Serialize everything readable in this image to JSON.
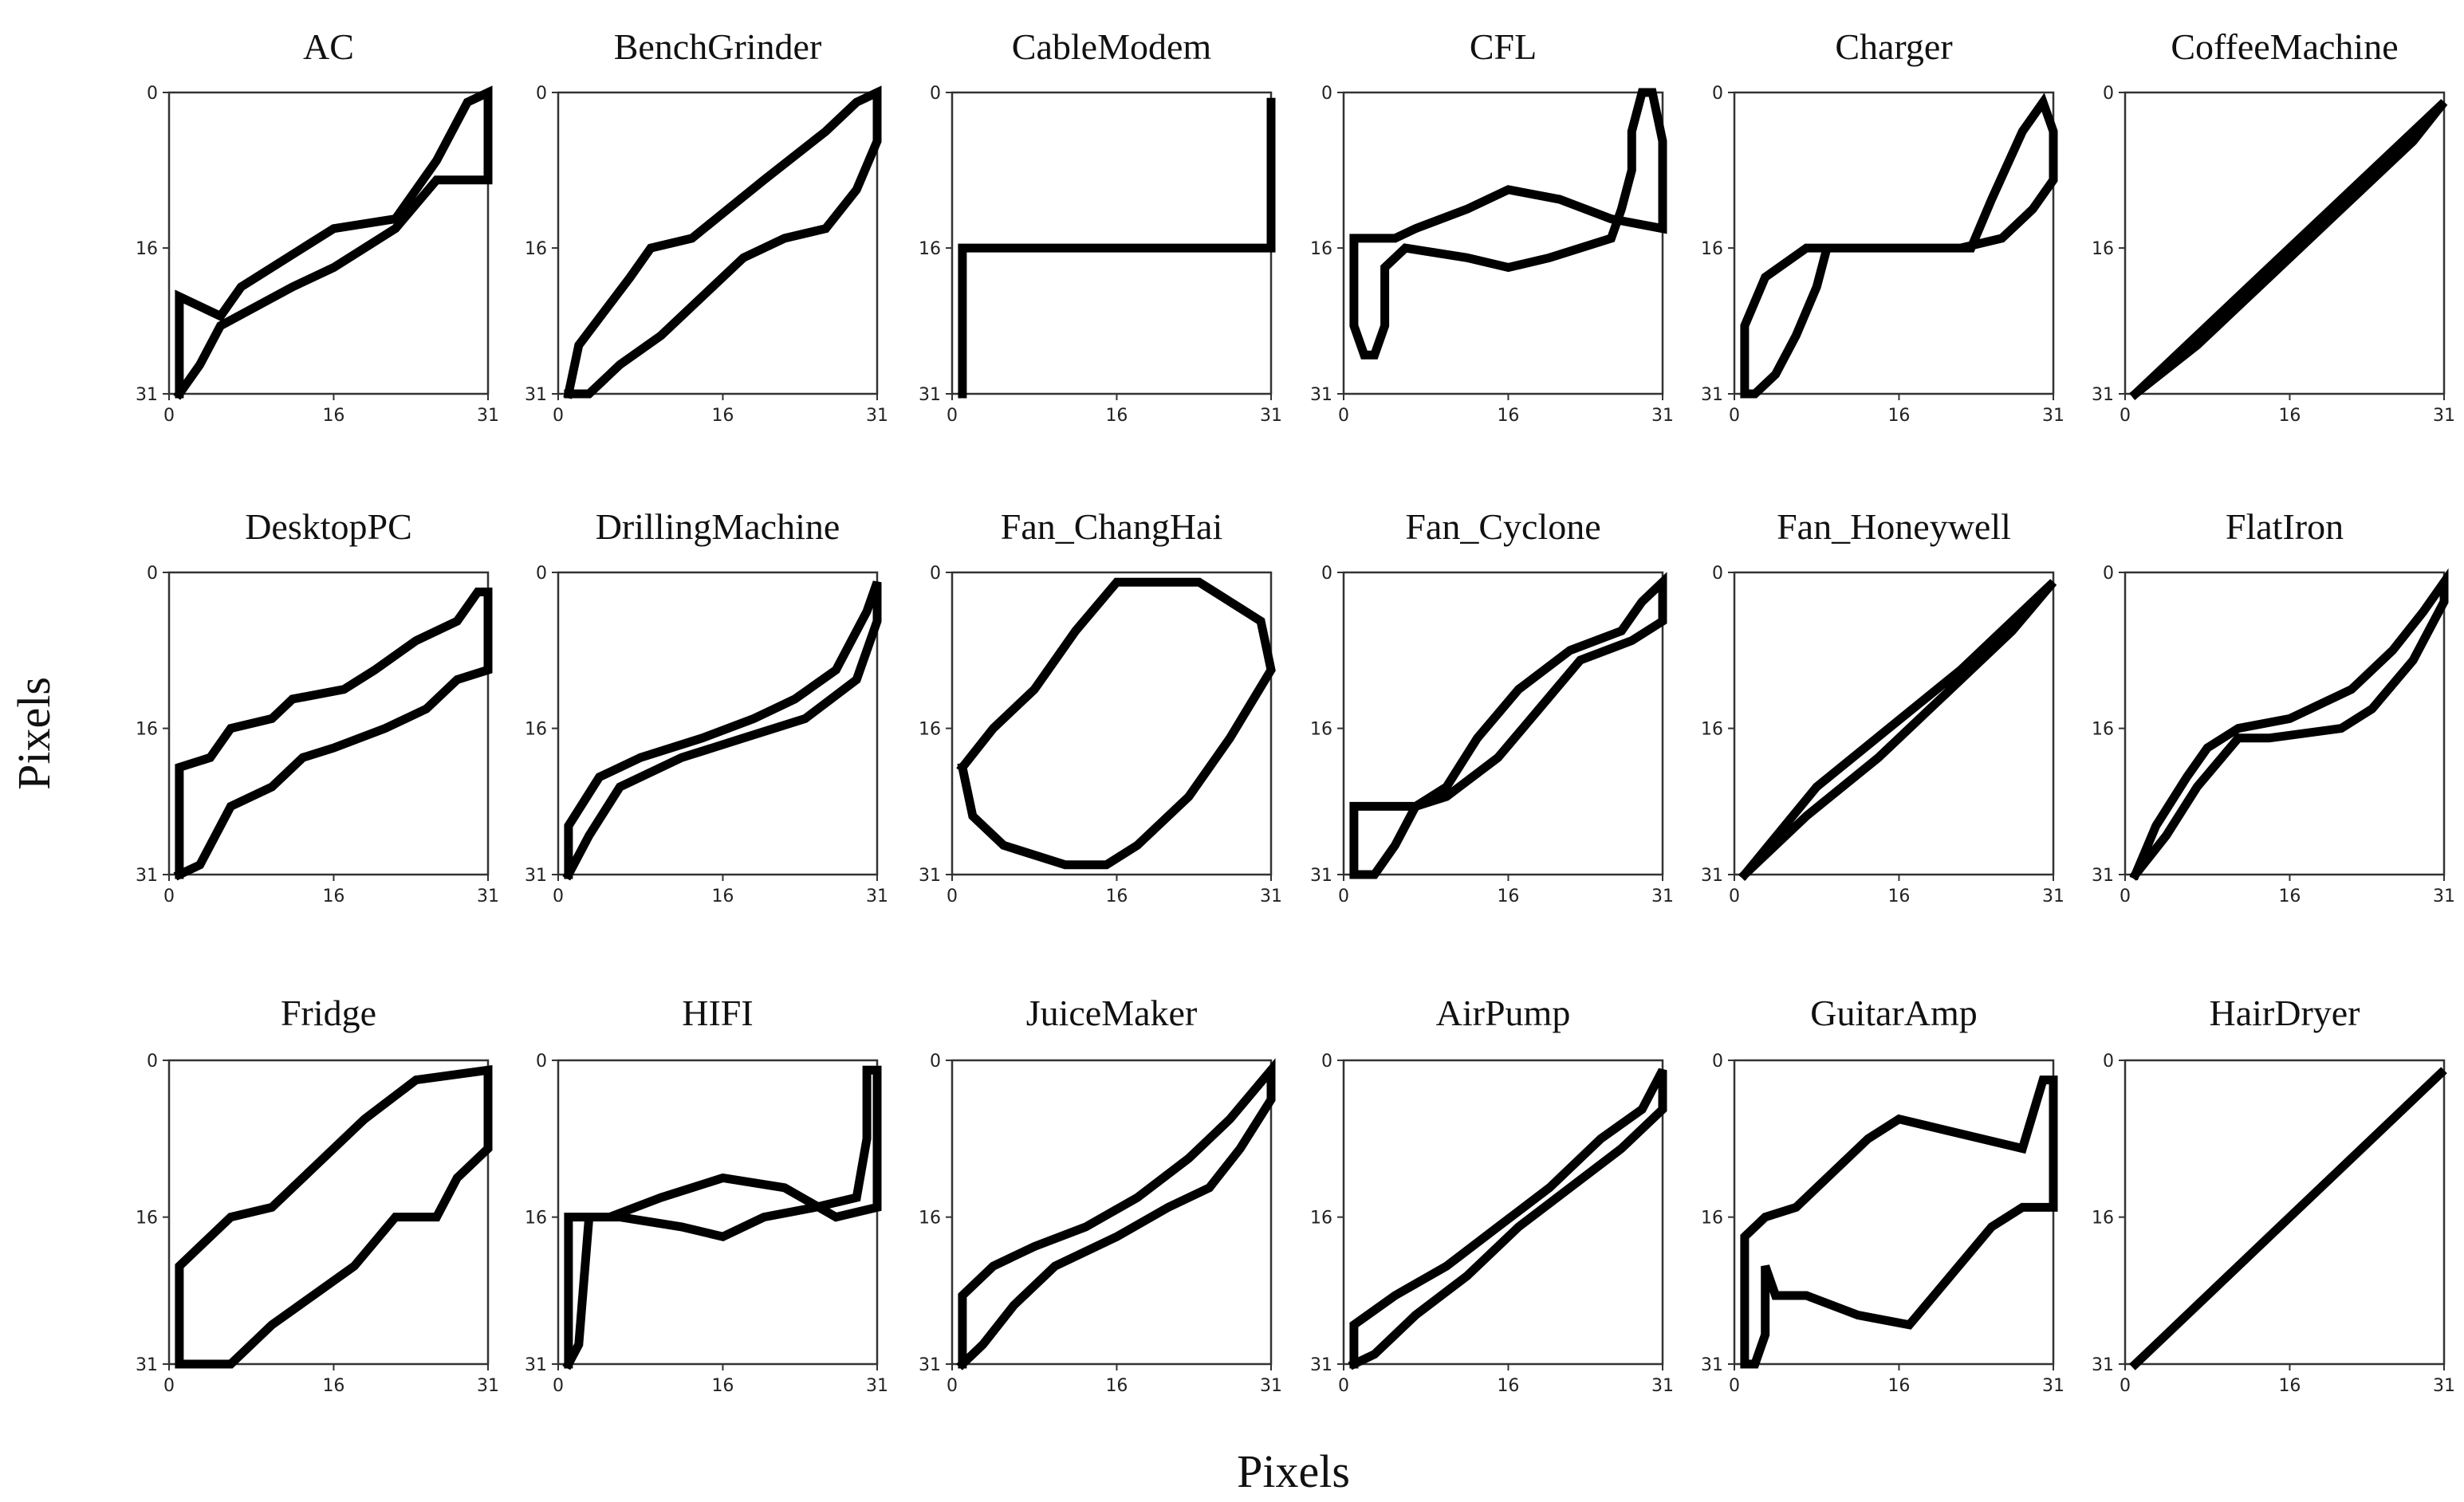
{
  "figure": {
    "x_axis_label": "Pixels",
    "y_axis_label": "Pixels"
  },
  "colors": {
    "ink": "#000000",
    "frame": "#333333",
    "background": "#ffffff"
  },
  "chart_data": [
    {
      "type": "binary-image",
      "title": "AC",
      "grid_size": 32,
      "xticks": [
        0,
        16,
        31
      ],
      "yticks": [
        0,
        16,
        31
      ],
      "path": [
        [
          1,
          31
        ],
        [
          1,
          21
        ],
        [
          5,
          23
        ],
        [
          7,
          20
        ],
        [
          13,
          16
        ],
        [
          16,
          14
        ],
        [
          22,
          13
        ],
        [
          26,
          7
        ],
        [
          29,
          1
        ],
        [
          31,
          0
        ],
        [
          31,
          9
        ],
        [
          26,
          9
        ],
        [
          22,
          14
        ],
        [
          16,
          18
        ],
        [
          12,
          20
        ],
        [
          5,
          24
        ],
        [
          3,
          28
        ],
        [
          1,
          31
        ]
      ]
    },
    {
      "type": "binary-image",
      "title": "BenchGrinder",
      "grid_size": 32,
      "xticks": [
        0,
        16,
        31
      ],
      "yticks": [
        0,
        16,
        31
      ],
      "path": [
        [
          1,
          31
        ],
        [
          2,
          26
        ],
        [
          7,
          19
        ],
        [
          9,
          16
        ],
        [
          13,
          15
        ],
        [
          20,
          9
        ],
        [
          26,
          4
        ],
        [
          29,
          1
        ],
        [
          31,
          0
        ],
        [
          31,
          5
        ],
        [
          29,
          10
        ],
        [
          26,
          14
        ],
        [
          22,
          15
        ],
        [
          18,
          17
        ],
        [
          14,
          21
        ],
        [
          10,
          25
        ],
        [
          6,
          28
        ],
        [
          3,
          31
        ],
        [
          1,
          31
        ]
      ]
    },
    {
      "type": "binary-image",
      "title": "CableModem",
      "grid_size": 32,
      "xticks": [
        0,
        16,
        31
      ],
      "yticks": [
        0,
        16,
        31
      ],
      "path": [
        [
          1,
          31
        ],
        [
          1,
          16
        ],
        [
          31,
          16
        ],
        [
          31,
          1
        ]
      ]
    },
    {
      "type": "binary-image",
      "title": "CFL",
      "grid_size": 32,
      "xticks": [
        0,
        16,
        31
      ],
      "yticks": [
        0,
        16,
        31
      ],
      "path": [
        [
          1,
          15
        ],
        [
          5,
          15
        ],
        [
          7,
          14
        ],
        [
          12,
          12
        ],
        [
          16,
          10
        ],
        [
          21,
          11
        ],
        [
          26,
          13
        ],
        [
          31,
          14
        ],
        [
          31,
          5
        ],
        [
          30,
          0
        ],
        [
          29,
          0
        ],
        [
          28,
          4
        ],
        [
          28,
          8
        ],
        [
          27,
          12
        ],
        [
          26,
          15
        ],
        [
          20,
          17
        ],
        [
          16,
          18
        ],
        [
          12,
          17
        ],
        [
          6,
          16
        ],
        [
          4,
          18
        ],
        [
          4,
          24
        ],
        [
          3,
          27
        ],
        [
          2,
          27
        ],
        [
          1,
          24
        ],
        [
          1,
          15
        ]
      ]
    },
    {
      "type": "binary-image",
      "title": "Charger",
      "grid_size": 32,
      "xticks": [
        0,
        16,
        31
      ],
      "yticks": [
        0,
        16,
        31
      ],
      "path": [
        [
          1,
          31
        ],
        [
          1,
          24
        ],
        [
          3,
          19
        ],
        [
          7,
          16
        ],
        [
          23,
          16
        ],
        [
          25,
          11
        ],
        [
          28,
          4
        ],
        [
          30,
          1
        ],
        [
          31,
          4
        ],
        [
          31,
          9
        ],
        [
          29,
          12
        ],
        [
          26,
          15
        ],
        [
          22,
          16
        ],
        [
          9,
          16
        ],
        [
          8,
          20
        ],
        [
          6,
          25
        ],
        [
          4,
          29
        ],
        [
          2,
          31
        ],
        [
          1,
          31
        ]
      ]
    },
    {
      "type": "binary-image",
      "title": "CoffeeMachine",
      "grid_size": 32,
      "xticks": [
        0,
        16,
        31
      ],
      "yticks": [
        0,
        16,
        31
      ],
      "path": [
        [
          1,
          31
        ],
        [
          8,
          24
        ],
        [
          15,
          17
        ],
        [
          22,
          10
        ],
        [
          29,
          3
        ],
        [
          31,
          1
        ],
        [
          28,
          5
        ],
        [
          21,
          12
        ],
        [
          14,
          19
        ],
        [
          7,
          26
        ],
        [
          1,
          31
        ]
      ]
    },
    {
      "type": "binary-image",
      "title": "DesktopPC",
      "grid_size": 32,
      "xticks": [
        0,
        16,
        31
      ],
      "yticks": [
        0,
        16,
        31
      ],
      "path": [
        [
          1,
          31
        ],
        [
          1,
          20
        ],
        [
          4,
          19
        ],
        [
          6,
          16
        ],
        [
          10,
          15
        ],
        [
          12,
          13
        ],
        [
          17,
          12
        ],
        [
          20,
          10
        ],
        [
          24,
          7
        ],
        [
          28,
          5
        ],
        [
          30,
          2
        ],
        [
          31,
          2
        ],
        [
          31,
          10
        ],
        [
          28,
          11
        ],
        [
          25,
          14
        ],
        [
          21,
          16
        ],
        [
          16,
          18
        ],
        [
          13,
          19
        ],
        [
          10,
          22
        ],
        [
          6,
          24
        ],
        [
          3,
          30
        ],
        [
          1,
          31
        ]
      ]
    },
    {
      "type": "binary-image",
      "title": "DrillingMachine",
      "grid_size": 32,
      "xticks": [
        0,
        16,
        31
      ],
      "yticks": [
        0,
        16,
        31
      ],
      "path": [
        [
          1,
          31
        ],
        [
          1,
          26
        ],
        [
          4,
          21
        ],
        [
          8,
          19
        ],
        [
          14,
          17
        ],
        [
          19,
          15
        ],
        [
          23,
          13
        ],
        [
          27,
          10
        ],
        [
          30,
          4
        ],
        [
          31,
          1
        ],
        [
          31,
          5
        ],
        [
          29,
          11
        ],
        [
          24,
          15
        ],
        [
          18,
          17
        ],
        [
          12,
          19
        ],
        [
          6,
          22
        ],
        [
          3,
          27
        ],
        [
          1,
          31
        ]
      ]
    },
    {
      "type": "binary-image",
      "title": "Fan_ChangHai",
      "grid_size": 32,
      "xticks": [
        0,
        16,
        31
      ],
      "yticks": [
        0,
        16,
        31
      ],
      "path": [
        [
          1,
          20
        ],
        [
          4,
          16
        ],
        [
          8,
          12
        ],
        [
          12,
          6
        ],
        [
          16,
          1
        ],
        [
          24,
          1
        ],
        [
          30,
          5
        ],
        [
          31,
          10
        ],
        [
          27,
          17
        ],
        [
          23,
          23
        ],
        [
          18,
          28
        ],
        [
          15,
          30
        ],
        [
          11,
          30
        ],
        [
          5,
          28
        ],
        [
          2,
          25
        ],
        [
          1,
          20
        ]
      ]
    },
    {
      "type": "binary-image",
      "title": "Fan_Cyclone",
      "grid_size": 32,
      "xticks": [
        0,
        16,
        31
      ],
      "yticks": [
        0,
        16,
        31
      ],
      "path": [
        [
          1,
          31
        ],
        [
          1,
          24
        ],
        [
          7,
          24
        ],
        [
          10,
          22
        ],
        [
          13,
          17
        ],
        [
          17,
          12
        ],
        [
          22,
          8
        ],
        [
          27,
          6
        ],
        [
          29,
          3
        ],
        [
          31,
          1
        ],
        [
          31,
          5
        ],
        [
          28,
          7
        ],
        [
          23,
          9
        ],
        [
          19,
          14
        ],
        [
          15,
          19
        ],
        [
          10,
          23
        ],
        [
          7,
          24
        ],
        [
          5,
          28
        ],
        [
          3,
          31
        ],
        [
          1,
          31
        ]
      ]
    },
    {
      "type": "binary-image",
      "title": "Fan_Honeywell",
      "grid_size": 32,
      "xticks": [
        0,
        16,
        31
      ],
      "yticks": [
        0,
        16,
        31
      ],
      "path": [
        [
          1,
          31
        ],
        [
          7,
          25
        ],
        [
          14,
          19
        ],
        [
          21,
          12
        ],
        [
          27,
          6
        ],
        [
          31,
          1
        ],
        [
          28,
          4
        ],
        [
          22,
          10
        ],
        [
          15,
          16
        ],
        [
          8,
          22
        ],
        [
          1,
          31
        ]
      ]
    },
    {
      "type": "binary-image",
      "title": "FlatIron",
      "grid_size": 32,
      "xticks": [
        0,
        16,
        31
      ],
      "yticks": [
        0,
        16,
        31
      ],
      "path": [
        [
          1,
          31
        ],
        [
          3,
          26
        ],
        [
          6,
          21
        ],
        [
          8,
          18
        ],
        [
          11,
          16
        ],
        [
          16,
          15
        ],
        [
          22,
          12
        ],
        [
          26,
          8
        ],
        [
          29,
          4
        ],
        [
          31,
          1
        ],
        [
          31,
          3
        ],
        [
          28,
          9
        ],
        [
          24,
          14
        ],
        [
          21,
          16
        ],
        [
          14,
          17
        ],
        [
          11,
          17
        ],
        [
          7,
          22
        ],
        [
          4,
          27
        ],
        [
          1,
          31
        ]
      ]
    },
    {
      "type": "binary-image",
      "title": "Fridge",
      "grid_size": 32,
      "xticks": [
        0,
        16,
        31
      ],
      "yticks": [
        0,
        16,
        31
      ],
      "path": [
        [
          1,
          31
        ],
        [
          1,
          21
        ],
        [
          3,
          19
        ],
        [
          6,
          16
        ],
        [
          10,
          15
        ],
        [
          14,
          11
        ],
        [
          19,
          6
        ],
        [
          24,
          2
        ],
        [
          31,
          1
        ],
        [
          31,
          9
        ],
        [
          28,
          12
        ],
        [
          26,
          16
        ],
        [
          22,
          16
        ],
        [
          18,
          21
        ],
        [
          14,
          24
        ],
        [
          10,
          27
        ],
        [
          6,
          31
        ],
        [
          1,
          31
        ]
      ]
    },
    {
      "type": "binary-image",
      "title": "HIFI",
      "grid_size": 32,
      "xticks": [
        0,
        16,
        31
      ],
      "yticks": [
        0,
        16,
        31
      ],
      "path": [
        [
          1,
          31
        ],
        [
          1,
          16
        ],
        [
          5,
          16
        ],
        [
          10,
          14
        ],
        [
          16,
          12
        ],
        [
          22,
          13
        ],
        [
          27,
          16
        ],
        [
          31,
          15
        ],
        [
          31,
          1
        ],
        [
          30,
          1
        ],
        [
          30,
          8
        ],
        [
          29,
          14
        ],
        [
          25,
          15
        ],
        [
          20,
          16
        ],
        [
          16,
          18
        ],
        [
          12,
          17
        ],
        [
          6,
          16
        ],
        [
          3,
          16
        ],
        [
          2,
          29
        ],
        [
          1,
          31
        ]
      ]
    },
    {
      "type": "binary-image",
      "title": "JuiceMaker",
      "grid_size": 32,
      "xticks": [
        0,
        16,
        31
      ],
      "yticks": [
        0,
        16,
        31
      ],
      "path": [
        [
          1,
          31
        ],
        [
          1,
          24
        ],
        [
          4,
          21
        ],
        [
          8,
          19
        ],
        [
          13,
          17
        ],
        [
          18,
          14
        ],
        [
          23,
          10
        ],
        [
          27,
          6
        ],
        [
          31,
          1
        ],
        [
          31,
          4
        ],
        [
          28,
          9
        ],
        [
          25,
          13
        ],
        [
          21,
          15
        ],
        [
          16,
          18
        ],
        [
          10,
          21
        ],
        [
          6,
          25
        ],
        [
          3,
          29
        ],
        [
          1,
          31
        ]
      ]
    },
    {
      "type": "binary-image",
      "title": "AirPump",
      "grid_size": 32,
      "xticks": [
        0,
        16,
        31
      ],
      "yticks": [
        0,
        16,
        31
      ],
      "path": [
        [
          1,
          31
        ],
        [
          1,
          27
        ],
        [
          5,
          24
        ],
        [
          10,
          21
        ],
        [
          15,
          17
        ],
        [
          20,
          13
        ],
        [
          25,
          8
        ],
        [
          29,
          5
        ],
        [
          31,
          1
        ],
        [
          31,
          5
        ],
        [
          27,
          9
        ],
        [
          22,
          13
        ],
        [
          17,
          17
        ],
        [
          12,
          22
        ],
        [
          7,
          26
        ],
        [
          3,
          30
        ],
        [
          1,
          31
        ]
      ]
    },
    {
      "type": "binary-image",
      "title": "GuitarAmp",
      "grid_size": 32,
      "xticks": [
        0,
        16,
        31
      ],
      "yticks": [
        0,
        16,
        31
      ],
      "path": [
        [
          1,
          31
        ],
        [
          1,
          18
        ],
        [
          3,
          16
        ],
        [
          6,
          15
        ],
        [
          9,
          12
        ],
        [
          13,
          8
        ],
        [
          16,
          6
        ],
        [
          20,
          7
        ],
        [
          28,
          9
        ],
        [
          30,
          2
        ],
        [
          31,
          2
        ],
        [
          31,
          15
        ],
        [
          28,
          15
        ],
        [
          25,
          17
        ],
        [
          21,
          22
        ],
        [
          17,
          27
        ],
        [
          12,
          26
        ],
        [
          7,
          24
        ],
        [
          4,
          24
        ],
        [
          3,
          21
        ],
        [
          3,
          28
        ],
        [
          2,
          31
        ],
        [
          1,
          31
        ]
      ]
    },
    {
      "type": "binary-image",
      "title": "HairDryer",
      "grid_size": 32,
      "xticks": [
        0,
        16,
        31
      ],
      "yticks": [
        0,
        16,
        31
      ],
      "path": [
        [
          1,
          31
        ],
        [
          8,
          24
        ],
        [
          15,
          17
        ],
        [
          22,
          10
        ],
        [
          29,
          3
        ],
        [
          31,
          1
        ],
        [
          27,
          5
        ],
        [
          20,
          12
        ],
        [
          13,
          19
        ],
        [
          6,
          26
        ],
        [
          1,
          31
        ]
      ]
    }
  ]
}
